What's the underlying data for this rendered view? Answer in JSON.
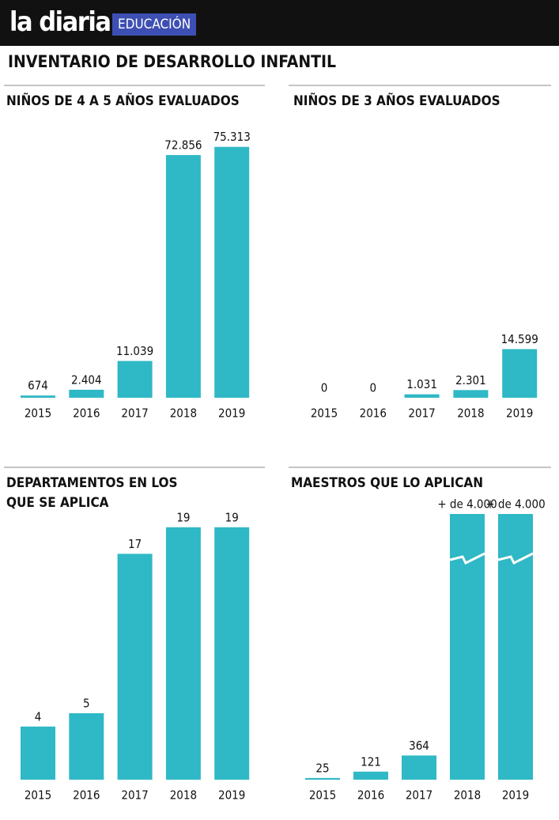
{
  "header": {
    "brand": "la diaria",
    "section": "EDUCACIÓN",
    "title": "INVENTARIO DE DESARROLLO INFANTIL"
  },
  "chart_data": [
    {
      "type": "bar",
      "title": "NIÑOS DE 4 A 5 AÑOS EVALUADOS",
      "categories": [
        "2015",
        "2016",
        "2017",
        "2018",
        "2019"
      ],
      "values": [
        674,
        2404,
        11039,
        72856,
        75313
      ],
      "value_labels": [
        "674",
        "2.404",
        "11.039",
        "72.856",
        "75.313"
      ],
      "color": "#2fb8c6",
      "ylim": [
        0,
        80000
      ]
    },
    {
      "type": "bar",
      "title": "NIÑOS DE 3 AÑOS EVALUADOS",
      "categories": [
        "2015",
        "2016",
        "2017",
        "2018",
        "2019"
      ],
      "values": [
        0,
        0,
        1031,
        2301,
        14599
      ],
      "value_labels": [
        "0",
        "0",
        "1.031",
        "2.301",
        "14.599"
      ],
      "color": "#2fb8c6",
      "ylim": [
        0,
        80000
      ]
    },
    {
      "type": "bar",
      "title": "DEPARTAMENTOS EN LOS QUE SE APLICA",
      "categories": [
        "2015",
        "2016",
        "2017",
        "2018",
        "2019"
      ],
      "values": [
        4,
        5,
        17,
        19,
        19
      ],
      "color": "#2fb8c6",
      "ylim": [
        0,
        20
      ]
    },
    {
      "type": "bar",
      "title": "MAESTROS QUE LO APLICAN",
      "categories": [
        "2015",
        "2016",
        "2017",
        "2018",
        "2019"
      ],
      "values": [
        25,
        121,
        364,
        4000,
        4000
      ],
      "value_labels": [
        "25",
        "121",
        "364",
        "+ de 4.000",
        "+ de 4.000"
      ],
      "color": "#2fb8c6",
      "ylim": [
        0,
        4000
      ]
    }
  ]
}
